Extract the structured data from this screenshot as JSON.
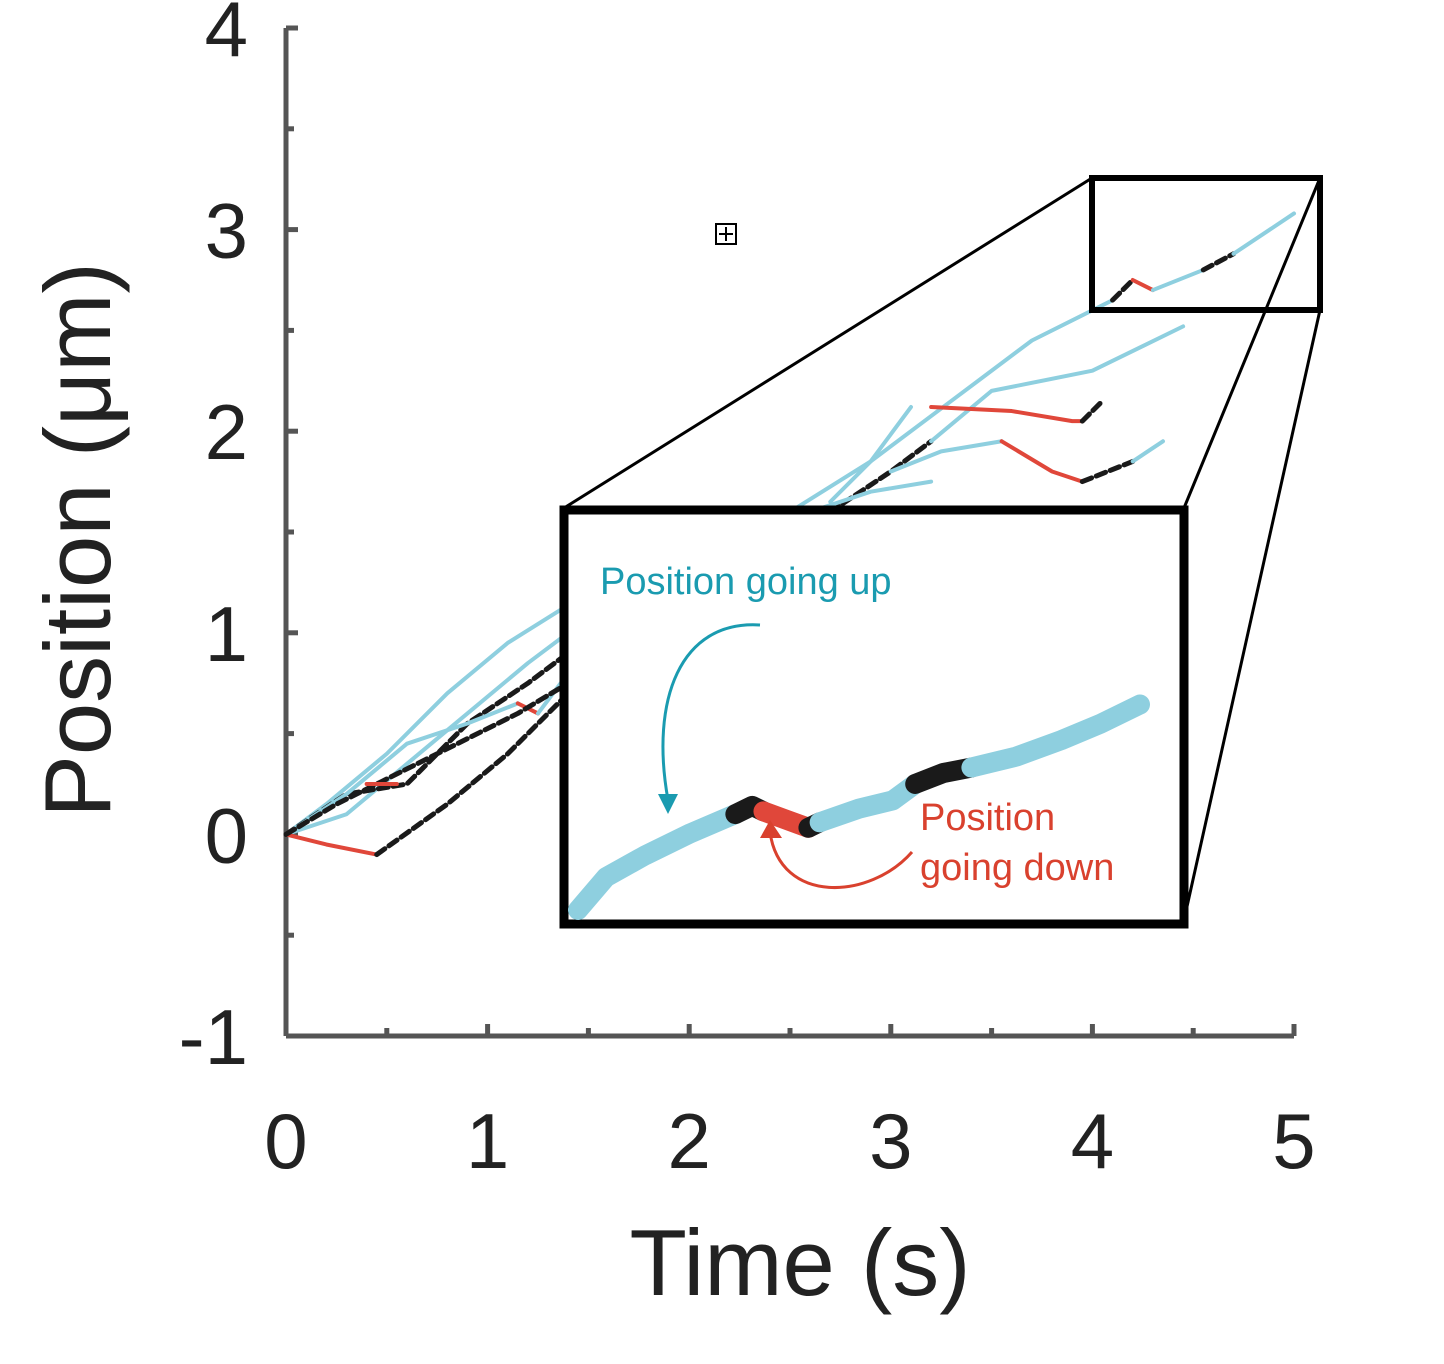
{
  "chart_data": {
    "type": "line",
    "xlabel": "Time (s)",
    "ylabel": "Position (μm)",
    "xlim": [
      0,
      5
    ],
    "ylim": [
      -1,
      4
    ],
    "x_ticks": [
      "0",
      "1",
      "2",
      "3",
      "4",
      "5"
    ],
    "y_ticks": [
      "-1",
      "0",
      "1",
      "2",
      "3",
      "4"
    ],
    "grid": false,
    "colors": {
      "up": "#8ecfdf",
      "pause": "#1a1a1a",
      "down": "#e0473a",
      "axis": "#555555"
    },
    "series": [
      {
        "segments": [
          {
            "state": "up",
            "points": [
              [
                0,
                0
              ],
              [
                0.2,
                0.15
              ],
              [
                0.5,
                0.4
              ],
              [
                0.8,
                0.7
              ],
              [
                1.1,
                0.95
              ],
              [
                1.5,
                1.2
              ]
            ]
          },
          {
            "state": "up",
            "points": [
              [
                2.5,
                1.6
              ],
              [
                2.9,
                1.85
              ],
              [
                3.3,
                2.15
              ],
              [
                3.7,
                2.45
              ],
              [
                4.1,
                2.65
              ]
            ]
          },
          {
            "state": "pause",
            "points": [
              [
                4.1,
                2.65
              ],
              [
                4.2,
                2.75
              ]
            ]
          },
          {
            "state": "down",
            "points": [
              [
                4.2,
                2.75
              ],
              [
                4.3,
                2.7
              ]
            ]
          },
          {
            "state": "up",
            "points": [
              [
                4.3,
                2.7
              ],
              [
                4.55,
                2.8
              ]
            ]
          },
          {
            "state": "pause",
            "points": [
              [
                4.55,
                2.8
              ],
              [
                4.7,
                2.88
              ]
            ]
          },
          {
            "state": "up",
            "points": [
              [
                4.7,
                2.88
              ],
              [
                5.0,
                3.08
              ]
            ]
          }
        ]
      },
      {
        "segments": [
          {
            "state": "up",
            "points": [
              [
                0,
                0
              ],
              [
                0.3,
                0.1
              ],
              [
                0.6,
                0.35
              ],
              [
                0.9,
                0.6
              ],
              [
                1.2,
                0.85
              ],
              [
                1.4,
                1.0
              ]
            ]
          },
          {
            "state": "pause",
            "points": [
              [
                2.7,
                1.6
              ],
              [
                3.0,
                1.8
              ],
              [
                3.2,
                1.95
              ]
            ]
          },
          {
            "state": "up",
            "points": [
              [
                3.2,
                1.95
              ],
              [
                3.5,
                2.2
              ],
              [
                4.0,
                2.3
              ],
              [
                4.45,
                2.52
              ]
            ]
          }
        ]
      },
      {
        "segments": [
          {
            "state": "pause",
            "points": [
              [
                0,
                0
              ],
              [
                0.3,
                0.2
              ],
              [
                0.6,
                0.25
              ],
              [
                0.9,
                0.55
              ],
              [
                1.2,
                0.75
              ],
              [
                1.4,
                0.9
              ]
            ]
          },
          {
            "state": "up",
            "points": [
              [
                2.7,
                1.65
              ],
              [
                2.9,
                1.85
              ],
              [
                3.1,
                2.12
              ]
            ]
          },
          {
            "state": "down",
            "points": [
              [
                3.2,
                2.12
              ],
              [
                3.6,
                2.1
              ],
              [
                3.9,
                2.05
              ],
              [
                3.95,
                2.05
              ]
            ]
          },
          {
            "state": "pause",
            "points": [
              [
                3.95,
                2.05
              ],
              [
                4.05,
                2.15
              ]
            ]
          }
        ]
      },
      {
        "segments": [
          {
            "state": "down",
            "points": [
              [
                0,
                0
              ],
              [
                0.2,
                -0.05
              ],
              [
                0.45,
                -0.1
              ]
            ]
          },
          {
            "state": "pause",
            "points": [
              [
                0.45,
                -0.1
              ],
              [
                0.8,
                0.15
              ],
              [
                1.1,
                0.4
              ],
              [
                1.4,
                0.7
              ]
            ]
          },
          {
            "state": "up",
            "points": [
              [
                3.0,
                1.8
              ],
              [
                3.25,
                1.9
              ],
              [
                3.55,
                1.95
              ]
            ]
          },
          {
            "state": "down",
            "points": [
              [
                3.55,
                1.95
              ],
              [
                3.8,
                1.8
              ],
              [
                3.95,
                1.75
              ]
            ]
          },
          {
            "state": "pause",
            "points": [
              [
                3.95,
                1.75
              ],
              [
                4.2,
                1.85
              ]
            ]
          },
          {
            "state": "up",
            "points": [
              [
                4.2,
                1.85
              ],
              [
                4.35,
                1.95
              ]
            ]
          }
        ]
      },
      {
        "segments": [
          {
            "state": "up",
            "points": [
              [
                0,
                0
              ],
              [
                0.3,
                0.2
              ],
              [
                0.6,
                0.45
              ],
              [
                0.9,
                0.55
              ],
              [
                1.15,
                0.65
              ]
            ]
          },
          {
            "state": "down",
            "points": [
              [
                1.15,
                0.65
              ],
              [
                1.25,
                0.6
              ]
            ]
          },
          {
            "state": "up",
            "points": [
              [
                1.25,
                0.6
              ],
              [
                1.4,
                0.8
              ]
            ]
          },
          {
            "state": "up",
            "points": [
              [
                2.6,
                1.6
              ],
              [
                2.9,
                1.7
              ],
              [
                3.2,
                1.75
              ]
            ]
          }
        ]
      },
      {
        "segments": [
          {
            "state": "pause",
            "points": [
              [
                0,
                0
              ],
              [
                0.25,
                0.15
              ],
              [
                0.55,
                0.3
              ],
              [
                0.85,
                0.45
              ],
              [
                1.15,
                0.6
              ],
              [
                1.4,
                0.75
              ]
            ]
          },
          {
            "state": "down",
            "points": [
              [
                0.4,
                0.25
              ],
              [
                0.55,
                0.25
              ]
            ]
          }
        ]
      }
    ]
  },
  "inset": {
    "label_up": "Position going up",
    "label_down_line1": "Position",
    "label_down_line2": "going down",
    "color_up_label": "#1a9bb0",
    "color_down_label": "#d9412e",
    "trace": [
      {
        "state": "up",
        "points": [
          [
            0,
            0.0
          ],
          [
            0.05,
            0.12
          ],
          [
            0.12,
            0.2
          ],
          [
            0.2,
            0.28
          ],
          [
            0.28,
            0.35
          ]
        ]
      },
      {
        "state": "pause",
        "points": [
          [
            0.28,
            0.35
          ],
          [
            0.31,
            0.38
          ],
          [
            0.33,
            0.36
          ]
        ]
      },
      {
        "state": "down",
        "points": [
          [
            0.33,
            0.36
          ],
          [
            0.37,
            0.33
          ],
          [
            0.41,
            0.3
          ]
        ]
      },
      {
        "state": "pause",
        "points": [
          [
            0.41,
            0.3
          ],
          [
            0.43,
            0.32
          ]
        ]
      },
      {
        "state": "up",
        "points": [
          [
            0.43,
            0.32
          ],
          [
            0.5,
            0.37
          ],
          [
            0.56,
            0.4
          ],
          [
            0.6,
            0.46
          ]
        ]
      },
      {
        "state": "pause",
        "points": [
          [
            0.6,
            0.46
          ],
          [
            0.65,
            0.5
          ],
          [
            0.7,
            0.52
          ]
        ]
      },
      {
        "state": "up",
        "points": [
          [
            0.7,
            0.52
          ],
          [
            0.78,
            0.56
          ],
          [
            0.86,
            0.62
          ],
          [
            0.93,
            0.68
          ],
          [
            1.0,
            0.75
          ]
        ]
      }
    ]
  }
}
